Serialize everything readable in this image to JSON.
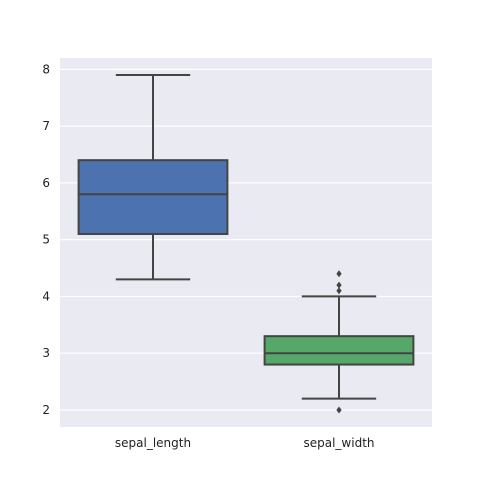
{
  "chart_data": {
    "type": "box",
    "categories": [
      "sepal_length",
      "sepal_width"
    ],
    "boxes": [
      {
        "category": "sepal_length",
        "whisker_low": 4.3,
        "q1": 5.1,
        "median": 5.8,
        "q3": 6.4,
        "whisker_high": 7.9,
        "outliers": [],
        "color": "#4c72b0"
      },
      {
        "category": "sepal_width",
        "whisker_low": 2.2,
        "q1": 2.8,
        "median": 3.0,
        "q3": 3.3,
        "whisker_high": 4.0,
        "outliers": [
          2.0,
          4.1,
          4.2,
          4.4
        ],
        "color": "#55a868"
      }
    ],
    "y_ticks": [
      2,
      3,
      4,
      5,
      6,
      7,
      8
    ],
    "ylim": [
      1.7,
      8.2
    ],
    "title": "",
    "xlabel": "",
    "ylabel": "",
    "grid": true,
    "background": "#eaeaf2",
    "gridline_color": "#ffffff",
    "line_color": "#444444"
  }
}
